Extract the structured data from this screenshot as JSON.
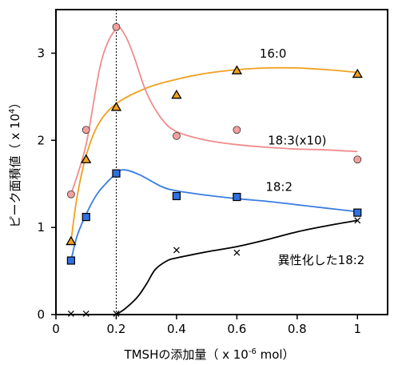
{
  "chart_data": {
    "type": "scatter",
    "xlabel": "TMSHの添加量（ x 10",
    "xlabel_exp": "-6",
    "xlabel_unit": " mol）",
    "ylabel": "ピーク面積値（ x 10",
    "ylabel_exp": "4",
    "ylabel_close": "）",
    "xlim": [
      0,
      1.1
    ],
    "ylim": [
      0,
      3.5
    ],
    "x_ticks": [
      0,
      0.2,
      0.4,
      0.6,
      0.8,
      1
    ],
    "x_tick_labels": [
      "0",
      "0.2",
      "0.4",
      "0.6",
      "0.8",
      "1"
    ],
    "y_ticks": [
      0,
      1,
      2,
      3
    ],
    "y_tick_labels": [
      "0",
      "1",
      "2",
      "3"
    ],
    "reference_line_x": 0.2,
    "series": [
      {
        "name": "16:0",
        "marker": "triangle",
        "marker_color": "#f0a020",
        "line_color": "#f0a020",
        "x": [
          0.05,
          0.1,
          0.2,
          0.4,
          0.6,
          1.0
        ],
        "y": [
          0.84,
          1.78,
          2.38,
          2.52,
          2.8,
          2.76
        ],
        "curve_x": [
          0.05,
          0.07,
          0.1,
          0.14,
          0.2,
          0.3,
          0.4,
          0.5,
          0.6,
          0.7,
          0.8,
          0.9,
          1.0
        ],
        "curve_y": [
          0.84,
          1.35,
          1.82,
          2.18,
          2.42,
          2.6,
          2.7,
          2.77,
          2.81,
          2.83,
          2.83,
          2.81,
          2.78
        ]
      },
      {
        "name": "18:3(x10)",
        "marker": "circle",
        "marker_color": "#f4a0a0",
        "line_color": "#f08c8c",
        "x": [
          0.05,
          0.1,
          0.2,
          0.4,
          0.6,
          1.0
        ],
        "y": [
          1.38,
          2.12,
          3.3,
          2.05,
          2.12,
          1.78
        ],
        "curve_x": [
          0.05,
          0.1,
          0.15,
          0.2,
          0.23,
          0.26,
          0.3,
          0.35,
          0.4,
          0.5,
          0.6,
          0.7,
          0.8,
          0.9,
          1.0
        ],
        "curve_y": [
          1.38,
          1.95,
          2.9,
          3.28,
          3.2,
          2.95,
          2.55,
          2.25,
          2.1,
          2.0,
          1.95,
          1.92,
          1.9,
          1.89,
          1.87
        ]
      },
      {
        "name": "18:2",
        "marker": "square",
        "marker_color": "#3070e0",
        "line_color": "#3a7de0",
        "x": [
          0.05,
          0.1,
          0.2,
          0.4,
          0.6,
          1.0
        ],
        "y": [
          0.62,
          1.12,
          1.62,
          1.36,
          1.35,
          1.17
        ],
        "curve_x": [
          0.05,
          0.07,
          0.1,
          0.14,
          0.2,
          0.23,
          0.28,
          0.35,
          0.4,
          0.5,
          0.6,
          0.7,
          0.8,
          0.9,
          1.0
        ],
        "curve_y": [
          0.62,
          0.9,
          1.15,
          1.4,
          1.62,
          1.66,
          1.6,
          1.47,
          1.42,
          1.37,
          1.33,
          1.3,
          1.26,
          1.22,
          1.18
        ]
      },
      {
        "name": "異性化した18:2",
        "marker": "cross",
        "marker_color": "#000000",
        "line_color": "#000000",
        "x": [
          0.05,
          0.1,
          0.2,
          0.4,
          0.6,
          1.0
        ],
        "y": [
          0.01,
          0.01,
          0.01,
          0.74,
          0.71,
          1.08
        ],
        "curve_x": [
          0.2,
          0.23,
          0.27,
          0.3,
          0.33,
          0.37,
          0.4,
          0.5,
          0.6,
          0.7,
          0.8,
          0.9,
          1.0
        ],
        "curve_y": [
          0.0,
          0.07,
          0.2,
          0.35,
          0.52,
          0.62,
          0.65,
          0.72,
          0.78,
          0.86,
          0.95,
          1.02,
          1.08
        ]
      }
    ],
    "series_labels": [
      {
        "text": "16:0",
        "x": 0.72,
        "y": 2.95
      },
      {
        "text": "18:3(x10)",
        "x": 0.8,
        "y": 1.95
      },
      {
        "text": "18:2",
        "x": 0.74,
        "y": 1.42
      },
      {
        "text": "異性化した18:2",
        "x": 0.88,
        "y": 0.58
      }
    ]
  }
}
